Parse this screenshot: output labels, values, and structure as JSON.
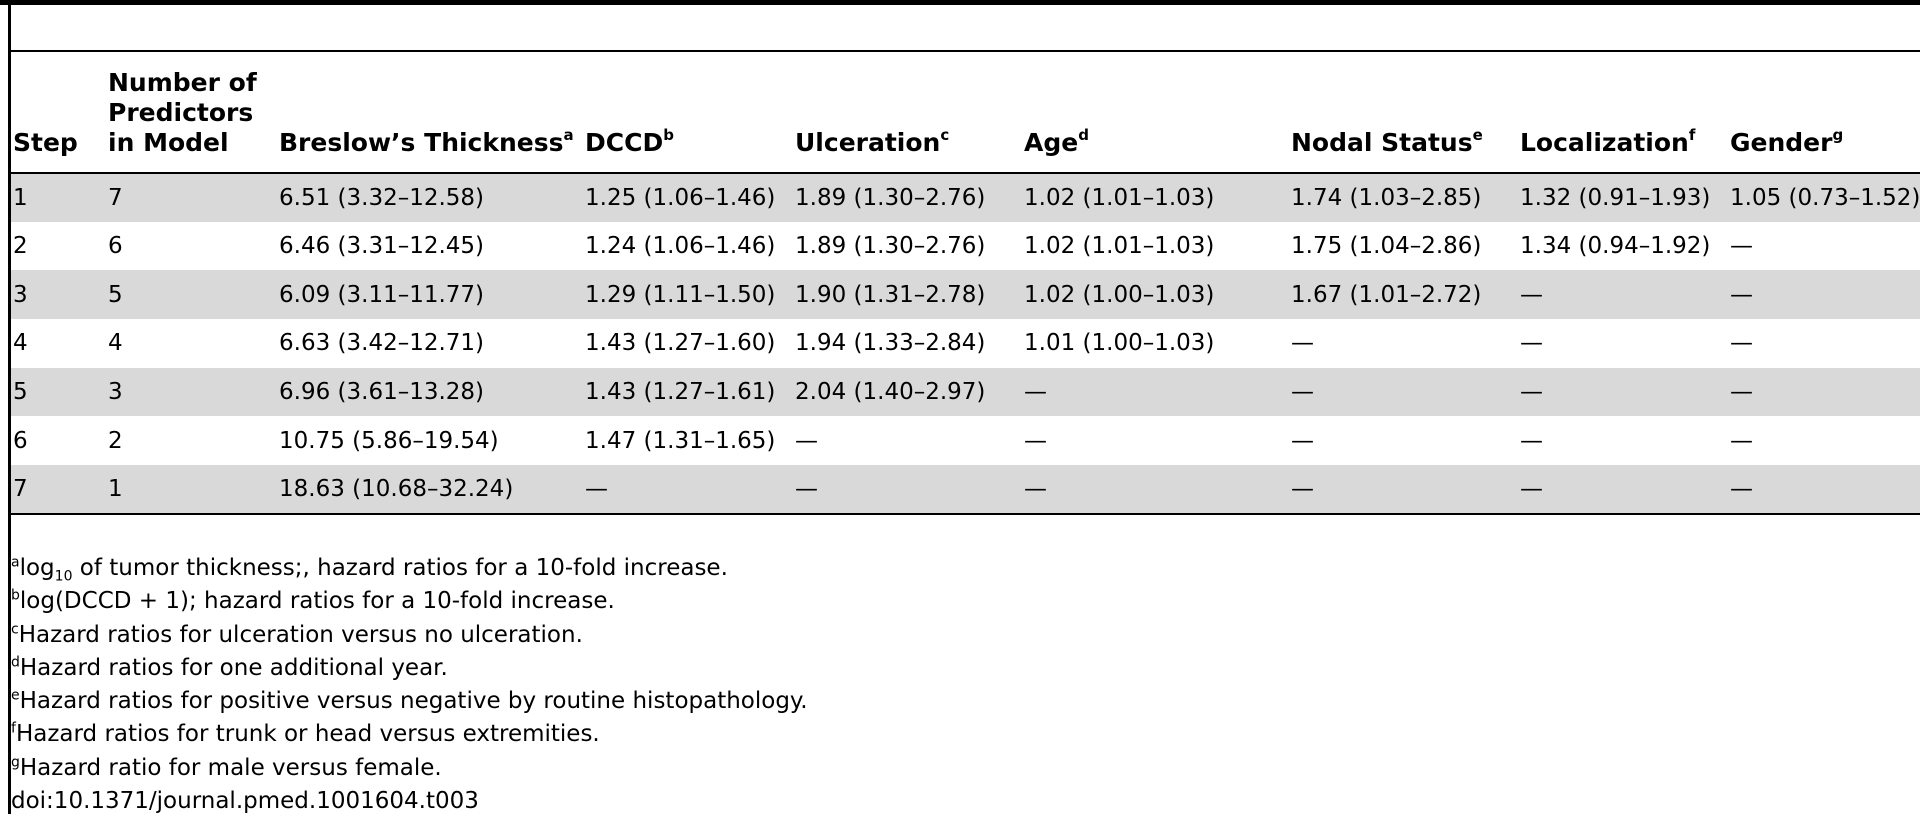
{
  "table": {
    "headers": [
      {
        "label": "Step",
        "sup": ""
      },
      {
        "label": "Number of Predictors in Model",
        "sup": ""
      },
      {
        "label": "Breslow’s Thickness",
        "sup": "a"
      },
      {
        "label": "DCCD",
        "sup": "b"
      },
      {
        "label": "Ulceration",
        "sup": "c"
      },
      {
        "label": "Age",
        "sup": "d"
      },
      {
        "label": "Nodal Status",
        "sup": "e"
      },
      {
        "label": "Localization",
        "sup": "f"
      },
      {
        "label": "Gender",
        "sup": "g"
      }
    ],
    "rows": [
      [
        "1",
        "7",
        "6.51 (3.32–12.58)",
        "1.25 (1.06–1.46)",
        "1.89 (1.30–2.76)",
        "1.02 (1.01–1.03)",
        "1.74 (1.03–2.85)",
        "1.32 (0.91–1.93)",
        "1.05 (0.73–1.52)"
      ],
      [
        "2",
        "6",
        "6.46 (3.31–12.45)",
        "1.24 (1.06–1.46)",
        "1.89 (1.30–2.76)",
        "1.02 (1.01–1.03)",
        "1.75 (1.04–2.86)",
        "1.34 (0.94–1.92)",
        "—"
      ],
      [
        "3",
        "5",
        "6.09 (3.11–11.77)",
        "1.29 (1.11–1.50)",
        "1.90 (1.31–2.78)",
        "1.02 (1.00–1.03)",
        "1.67 (1.01–2.72)",
        "—",
        "—"
      ],
      [
        "4",
        "4",
        "6.63 (3.42–12.71)",
        "1.43 (1.27–1.60)",
        "1.94 (1.33–2.84)",
        "1.01 (1.00–1.03)",
        "—",
        "—",
        "—"
      ],
      [
        "5",
        "3",
        "6.96 (3.61–13.28)",
        "1.43 (1.27–1.61)",
        "2.04 (1.40–2.97)",
        "—",
        "—",
        "—",
        "—"
      ],
      [
        "6",
        "2",
        "10.75 (5.86–19.54)",
        "1.47 (1.31–1.65)",
        "—",
        "—",
        "—",
        "—",
        "—"
      ],
      [
        "7",
        "1",
        "18.63 (10.68–32.24)",
        "—",
        "—",
        "—",
        "—",
        "—",
        "—"
      ]
    ]
  },
  "footnotes": [
    {
      "sup": "a",
      "pre": "log",
      "sub": "10",
      "text": " of tumor thickness;, hazard ratios for a 10-fold increase."
    },
    {
      "sup": "b",
      "pre": "",
      "sub": "",
      "text": "log(DCCD + 1); hazard ratios for a 10-fold increase."
    },
    {
      "sup": "c",
      "pre": "",
      "sub": "",
      "text": "Hazard ratios for ulceration versus no ulceration."
    },
    {
      "sup": "d",
      "pre": "",
      "sub": "",
      "text": "Hazard ratios for one additional year."
    },
    {
      "sup": "e",
      "pre": "",
      "sub": "",
      "text": "Hazard ratios for positive versus negative by routine histopathology."
    },
    {
      "sup": "f",
      "pre": "",
      "sub": "",
      "text": "Hazard ratios for trunk or head versus extremities."
    },
    {
      "sup": "g",
      "pre": "",
      "sub": "",
      "text": "Hazard ratio for male versus female."
    }
  ],
  "doi": "doi:10.1371/journal.pmed.1001604.t003"
}
